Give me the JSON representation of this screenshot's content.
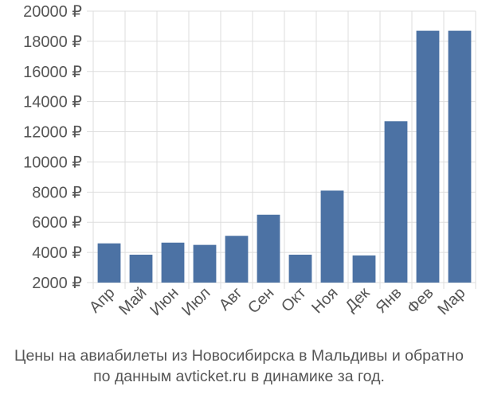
{
  "chart_data": {
    "type": "bar",
    "categories": [
      "Апр",
      "Май",
      "Июн",
      "Июл",
      "Авг",
      "Сен",
      "Окт",
      "Ноя",
      "Дек",
      "Янв",
      "Фев",
      "Мар"
    ],
    "values": [
      4600,
      3850,
      4650,
      4500,
      5100,
      6500,
      3850,
      8100,
      3800,
      12700,
      18700,
      18700
    ],
    "ylim": [
      2000,
      20000
    ],
    "yticks": [
      2000,
      4000,
      6000,
      8000,
      10000,
      12000,
      14000,
      16000,
      18000,
      20000
    ],
    "ytick_labels": [
      "2000 ₽",
      "4000 ₽",
      "6000 ₽",
      "8000 ₽",
      "10000 ₽",
      "12000 ₽",
      "14000 ₽",
      "16000 ₽",
      "18000 ₽",
      "20000 ₽"
    ],
    "grid": true,
    "bar_color": "#4c72a4",
    "caption_line1": "Цены на авиабилеты из Новосибирска в Мальдивы и обратно",
    "caption_line2": "по данным avticket.ru в динамике за год."
  }
}
